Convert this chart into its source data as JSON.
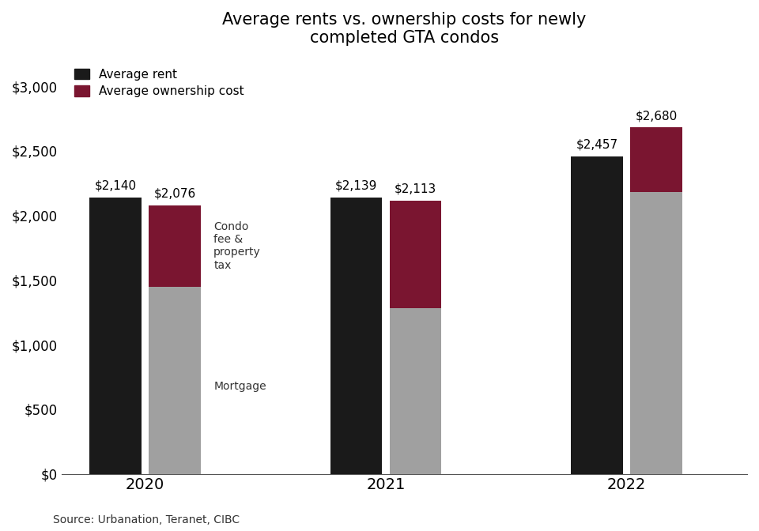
{
  "title": "Average rents vs. ownership costs for newly\ncompleted GTA condos",
  "years": [
    "2020",
    "2021",
    "2022"
  ],
  "rent_values": [
    2140,
    2139,
    2457
  ],
  "mortgage_values": [
    1450,
    1280,
    2180
  ],
  "condo_fee_values": [
    626,
    833,
    500
  ],
  "ownership_totals": [
    2076,
    2113,
    2680
  ],
  "rent_color": "#1a1a1a",
  "mortgage_color": "#a0a0a0",
  "condo_fee_color": "#7a1530",
  "bar_width": 0.28,
  "ylim": [
    0,
    3200
  ],
  "yticks": [
    0,
    500,
    1000,
    1500,
    2000,
    2500,
    3000
  ],
  "ytick_labels": [
    "$0",
    "$500",
    "$1,000",
    "$1,500",
    "$2,000",
    "$2,500",
    "$3,000"
  ],
  "source_text": "Source: Urbanation, Teranet, CIBC",
  "background_color": "#ffffff",
  "annotation_fontsize": 11,
  "label_fontsize": 12,
  "title_fontsize": 15
}
